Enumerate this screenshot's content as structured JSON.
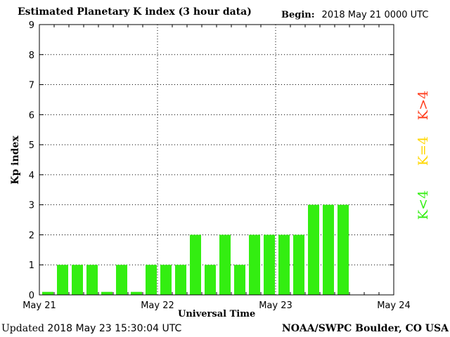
{
  "header": {
    "title": "Estimated Planetary K index (3 hour data)",
    "begin_label": "Begin:",
    "begin_value": "2018 May 21 0000 UTC"
  },
  "footer": {
    "updated_label": "Updated",
    "updated_value": "2018 May 23 15:30:04 UTC",
    "source": "NOAA/SWPC Boulder, CO USA"
  },
  "legend": [
    {
      "label": "K>4",
      "color": "#ff3b1a"
    },
    {
      "label": "K=4",
      "color": "#ffd700"
    },
    {
      "label": "K<4",
      "color": "#33ee11"
    }
  ],
  "chart_data": {
    "type": "bar",
    "title": "Estimated Planetary K index (3 hour data)",
    "xlabel": "Universal Time",
    "ylabel": "Kp index",
    "ylim": [
      0,
      9
    ],
    "yticks": [
      "0",
      "1",
      "2",
      "3",
      "4",
      "5",
      "6",
      "7",
      "8",
      "9"
    ],
    "xticks": [
      "May 21",
      "May 22",
      "May 23",
      "May 24"
    ],
    "x_interval_hours": 3,
    "x_start": "2018 May 21 0000 UTC",
    "grid": true,
    "bar_color": "#33ee11",
    "values": [
      0.1,
      1,
      1,
      1,
      0.1,
      1,
      0.1,
      1,
      1,
      1,
      2,
      1,
      2,
      1,
      2,
      2,
      2,
      2,
      3,
      3,
      3
    ]
  }
}
